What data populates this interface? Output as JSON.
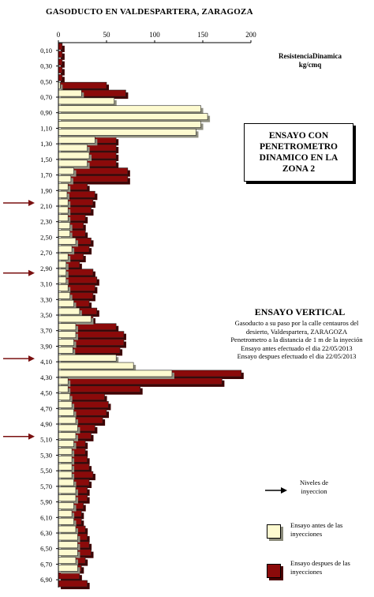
{
  "title": "GASODUCTO EN VALDESPARTERA, ZARAGOZA",
  "unit_label": [
    "ResistenciaDinamica",
    "kg/cmq"
  ],
  "box_text": "ENSAYO CON\nPENETROMETRO\nDINAMICO EN LA\nZONA 2",
  "vertical": {
    "title": "ENSAYO VERTICAL",
    "lines": [
      "Gasoducto a su paso por la calle centauros del desierto, Valdespartera, ZARAGOZA",
      "Penetrometro  a la distancia de 1 m de la inyeción",
      "Ensayo antes efectuado el dia 22/05/2013",
      "Ensayo despues efectuado el dia 22/05/2013"
    ]
  },
  "legend": {
    "arrow_label": "Niveles de inyeccion",
    "before_label": "Ensayo antes de las inyecciones",
    "after_label": "Ensayo despues de las inyecciones"
  },
  "colors": {
    "before": "#fdfad0",
    "after": "#8b0a0a",
    "arrow": "#7a1010"
  },
  "chart_data": {
    "type": "bar",
    "orientation": "horizontal",
    "x_axis": {
      "range": [
        0,
        200
      ],
      "ticks": [
        0,
        50,
        100,
        150,
        200
      ]
    },
    "y_labels": [
      "0,10",
      "0,30",
      "0,50",
      "0,70",
      "0,90",
      "1,10",
      "1,30",
      "1,50",
      "1,70",
      "1,90",
      "2,10",
      "2,30",
      "2,50",
      "2,70",
      "2,90",
      "3,10",
      "3,30",
      "3,50",
      "3,70",
      "3,90",
      "4,10",
      "4,30",
      "4,50",
      "4,70",
      "4,90",
      "5,10",
      "5,30",
      "5,50",
      "5,70",
      "5,90",
      "6,10",
      "6,30",
      "6,50",
      "6,70",
      "6,90"
    ],
    "depths": [
      0.1,
      0.2,
      0.3,
      0.4,
      0.5,
      0.6,
      0.7,
      0.8,
      0.9,
      1.0,
      1.1,
      1.2,
      1.3,
      1.4,
      1.5,
      1.6,
      1.7,
      1.8,
      1.9,
      2.0,
      2.1,
      2.2,
      2.3,
      2.4,
      2.5,
      2.6,
      2.7,
      2.8,
      2.9,
      3.0,
      3.1,
      3.2,
      3.3,
      3.4,
      3.5,
      3.6,
      3.7,
      3.8,
      3.9,
      4.0,
      4.1,
      4.2,
      4.3,
      4.4,
      4.5,
      4.6,
      4.7,
      4.8,
      4.9,
      5.0,
      5.1,
      5.2,
      5.3,
      5.4,
      5.5,
      5.6,
      5.7,
      5.8,
      5.9,
      6.0,
      6.1,
      6.2,
      6.3,
      6.4,
      6.5,
      6.6,
      6.7,
      6.8,
      6.9,
      7.0
    ],
    "series": [
      {
        "name": "Ensayo antes de las inyecciones",
        "values": [
          0,
          0,
          0,
          0,
          0,
          2,
          24,
          58,
          148,
          155,
          148,
          143,
          38,
          30,
          32,
          30,
          16,
          13,
          10,
          9,
          10,
          10,
          10,
          12,
          12,
          18,
          14,
          10,
          8,
          8,
          8,
          10,
          12,
          16,
          22,
          34,
          18,
          18,
          16,
          15,
          60,
          78,
          118,
          10,
          10,
          12,
          14,
          16,
          18,
          20,
          18,
          16,
          14,
          14,
          14,
          14,
          16,
          18,
          18,
          16,
          14,
          16,
          18,
          20,
          20,
          20,
          18,
          20,
          0,
          0
        ]
      },
      {
        "name": "Ensayo despues de las inyecciones",
        "values": [
          4,
          4,
          4,
          4,
          4,
          50,
          70,
          38,
          24,
          16,
          18,
          20,
          60,
          60,
          60,
          60,
          72,
          72,
          30,
          38,
          36,
          34,
          28,
          26,
          28,
          34,
          32,
          26,
          22,
          36,
          40,
          38,
          36,
          32,
          40,
          36,
          60,
          68,
          68,
          64,
          40,
          60,
          190,
          170,
          85,
          48,
          52,
          50,
          46,
          38,
          34,
          28,
          28,
          30,
          32,
          36,
          32,
          30,
          30,
          26,
          24,
          24,
          28,
          30,
          32,
          34,
          28,
          24,
          22,
          30
        ]
      }
    ],
    "injection_levels": [
      "2,10",
      "3,00",
      "4,10",
      "5,10"
    ]
  }
}
